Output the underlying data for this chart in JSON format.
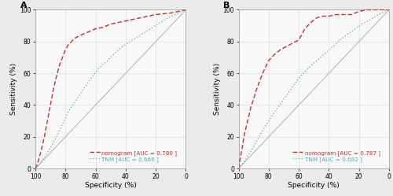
{
  "panel_A": {
    "label": "A",
    "nomogram_spec": [
      100,
      98,
      96,
      94,
      92,
      90,
      88,
      86,
      84,
      82,
      80,
      78,
      76,
      74,
      72,
      70,
      65,
      60,
      55,
      50,
      45,
      40,
      35,
      30,
      25,
      20,
      15,
      10,
      5,
      0
    ],
    "nomogram_sens": [
      0,
      5,
      12,
      20,
      30,
      40,
      50,
      58,
      65,
      70,
      75,
      78,
      80,
      82,
      83,
      84,
      86,
      88,
      89,
      91,
      92,
      93,
      94,
      95,
      96,
      97,
      97.5,
      98,
      99,
      100
    ],
    "tnm_spec": [
      100,
      97,
      94,
      90,
      86,
      82,
      78,
      73,
      68,
      63,
      58,
      52,
      47,
      42,
      37,
      32,
      27,
      22,
      17,
      12,
      7,
      3,
      0
    ],
    "tnm_sens": [
      0,
      3,
      7,
      13,
      20,
      28,
      36,
      43,
      50,
      57,
      63,
      68,
      73,
      77,
      80,
      83,
      86,
      89,
      92,
      95,
      97,
      99,
      100
    ],
    "legend_nomogram": "nomogram [AUC = 0.780 ]",
    "legend_tnm": "TNM [AUC = 0.666 ]"
  },
  "panel_B": {
    "label": "B",
    "nomogram_spec": [
      100,
      96,
      92,
      88,
      84,
      80,
      76,
      72,
      68,
      64,
      60,
      56,
      52,
      48,
      44,
      40,
      35,
      30,
      25,
      20,
      15,
      10,
      5,
      0
    ],
    "nomogram_sens": [
      0,
      22,
      38,
      50,
      60,
      68,
      72,
      75,
      77,
      79,
      81,
      88,
      92,
      95,
      96,
      96,
      97,
      97,
      97,
      99,
      100,
      100,
      100,
      100
    ],
    "tnm_spec": [
      100,
      95,
      90,
      84,
      78,
      72,
      66,
      60,
      54,
      48,
      42,
      36,
      30,
      24,
      18,
      12,
      7,
      3,
      0
    ],
    "tnm_sens": [
      0,
      6,
      14,
      24,
      33,
      41,
      49,
      57,
      63,
      68,
      73,
      78,
      83,
      87,
      91,
      94,
      97,
      99,
      100
    ],
    "legend_nomogram": "nomogram [AUC = 0.787 ]",
    "legend_tnm": "TNM [AUC = 0.682 ]"
  },
  "bg_color": "#ebebeb",
  "plot_bg_color": "#f8f8f8",
  "grid_color": "#d8d8d8",
  "nomogram_color": "#bb3333",
  "tnm_color": "#55aaaa",
  "diag_color": "#b0b0b0",
  "xlabel": "Specificity (%)",
  "ylabel": "Sensitivity (%)",
  "tick_labels": [
    100,
    80,
    60,
    40,
    20,
    0
  ],
  "fontsize_label": 6.5,
  "fontsize_tick": 5.5,
  "fontsize_legend": 5.2,
  "fontsize_panel": 8
}
